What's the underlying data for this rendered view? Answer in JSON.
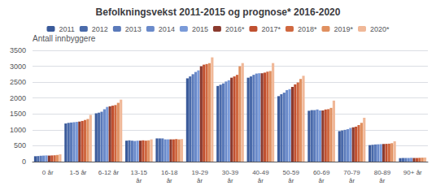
{
  "chart_data": {
    "type": "bar",
    "title": "Befolkningsvekst 2011-2015 og prognose* 2016-2020",
    "ylabel": "Antall innbyggere",
    "categories": [
      "0 år",
      "1-5 år",
      "6-12 år",
      "13-15\når",
      "16-18\når",
      "19-29\når",
      "30-39\når",
      "40-49\når",
      "50-59\når",
      "60-69\når",
      "70-79\når",
      "80-89\når",
      "90+ år"
    ],
    "series": [
      {
        "name": "2011",
        "color": "#3a5a9a",
        "values": [
          170,
          1200,
          1520,
          660,
          730,
          2620,
          2380,
          2640,
          2060,
          1600,
          960,
          520,
          110
        ]
      },
      {
        "name": "2012",
        "color": "#4a6aaa",
        "values": [
          175,
          1220,
          1540,
          670,
          730,
          2680,
          2420,
          2680,
          2120,
          1620,
          980,
          530,
          115
        ]
      },
      {
        "name": "2013",
        "color": "#5a7aba",
        "values": [
          185,
          1230,
          1570,
          660,
          730,
          2750,
          2460,
          2730,
          2170,
          1620,
          1000,
          540,
          115
        ]
      },
      {
        "name": "2014",
        "color": "#6a8aca",
        "values": [
          190,
          1240,
          1650,
          650,
          700,
          2820,
          2520,
          2770,
          2250,
          1640,
          1020,
          545,
          115
        ]
      },
      {
        "name": "2015",
        "color": "#7a9ad8",
        "values": [
          195,
          1250,
          1720,
          660,
          700,
          2870,
          2560,
          2780,
          2280,
          1610,
          1060,
          550,
          120
        ]
      },
      {
        "name": "2016*",
        "color": "#8b3a2e",
        "values": [
          190,
          1260,
          1740,
          660,
          700,
          3000,
          2640,
          2780,
          2350,
          1610,
          1080,
          555,
          115
        ]
      },
      {
        "name": "2017*",
        "color": "#c05030",
        "values": [
          195,
          1280,
          1760,
          670,
          700,
          3050,
          2680,
          2800,
          2430,
          1640,
          1100,
          560,
          115
        ]
      },
      {
        "name": "2018*",
        "color": "#d06840",
        "values": [
          200,
          1310,
          1780,
          660,
          710,
          3070,
          2730,
          2830,
          2490,
          1650,
          1150,
          565,
          120
        ]
      },
      {
        "name": "2019*",
        "color": "#e09060",
        "values": [
          210,
          1340,
          1850,
          670,
          700,
          3100,
          3000,
          2850,
          2600,
          1690,
          1220,
          580,
          125
        ]
      },
      {
        "name": "2020*",
        "color": "#f0b898",
        "values": [
          230,
          1470,
          1950,
          700,
          710,
          3280,
          3100,
          3100,
          2700,
          1920,
          1380,
          640,
          130
        ]
      }
    ],
    "ylim": [
      0,
      3500
    ],
    "yticks": [
      0,
      500,
      1000,
      1500,
      2000,
      2500,
      3000,
      3500
    ],
    "grid": true,
    "legend": "top"
  }
}
